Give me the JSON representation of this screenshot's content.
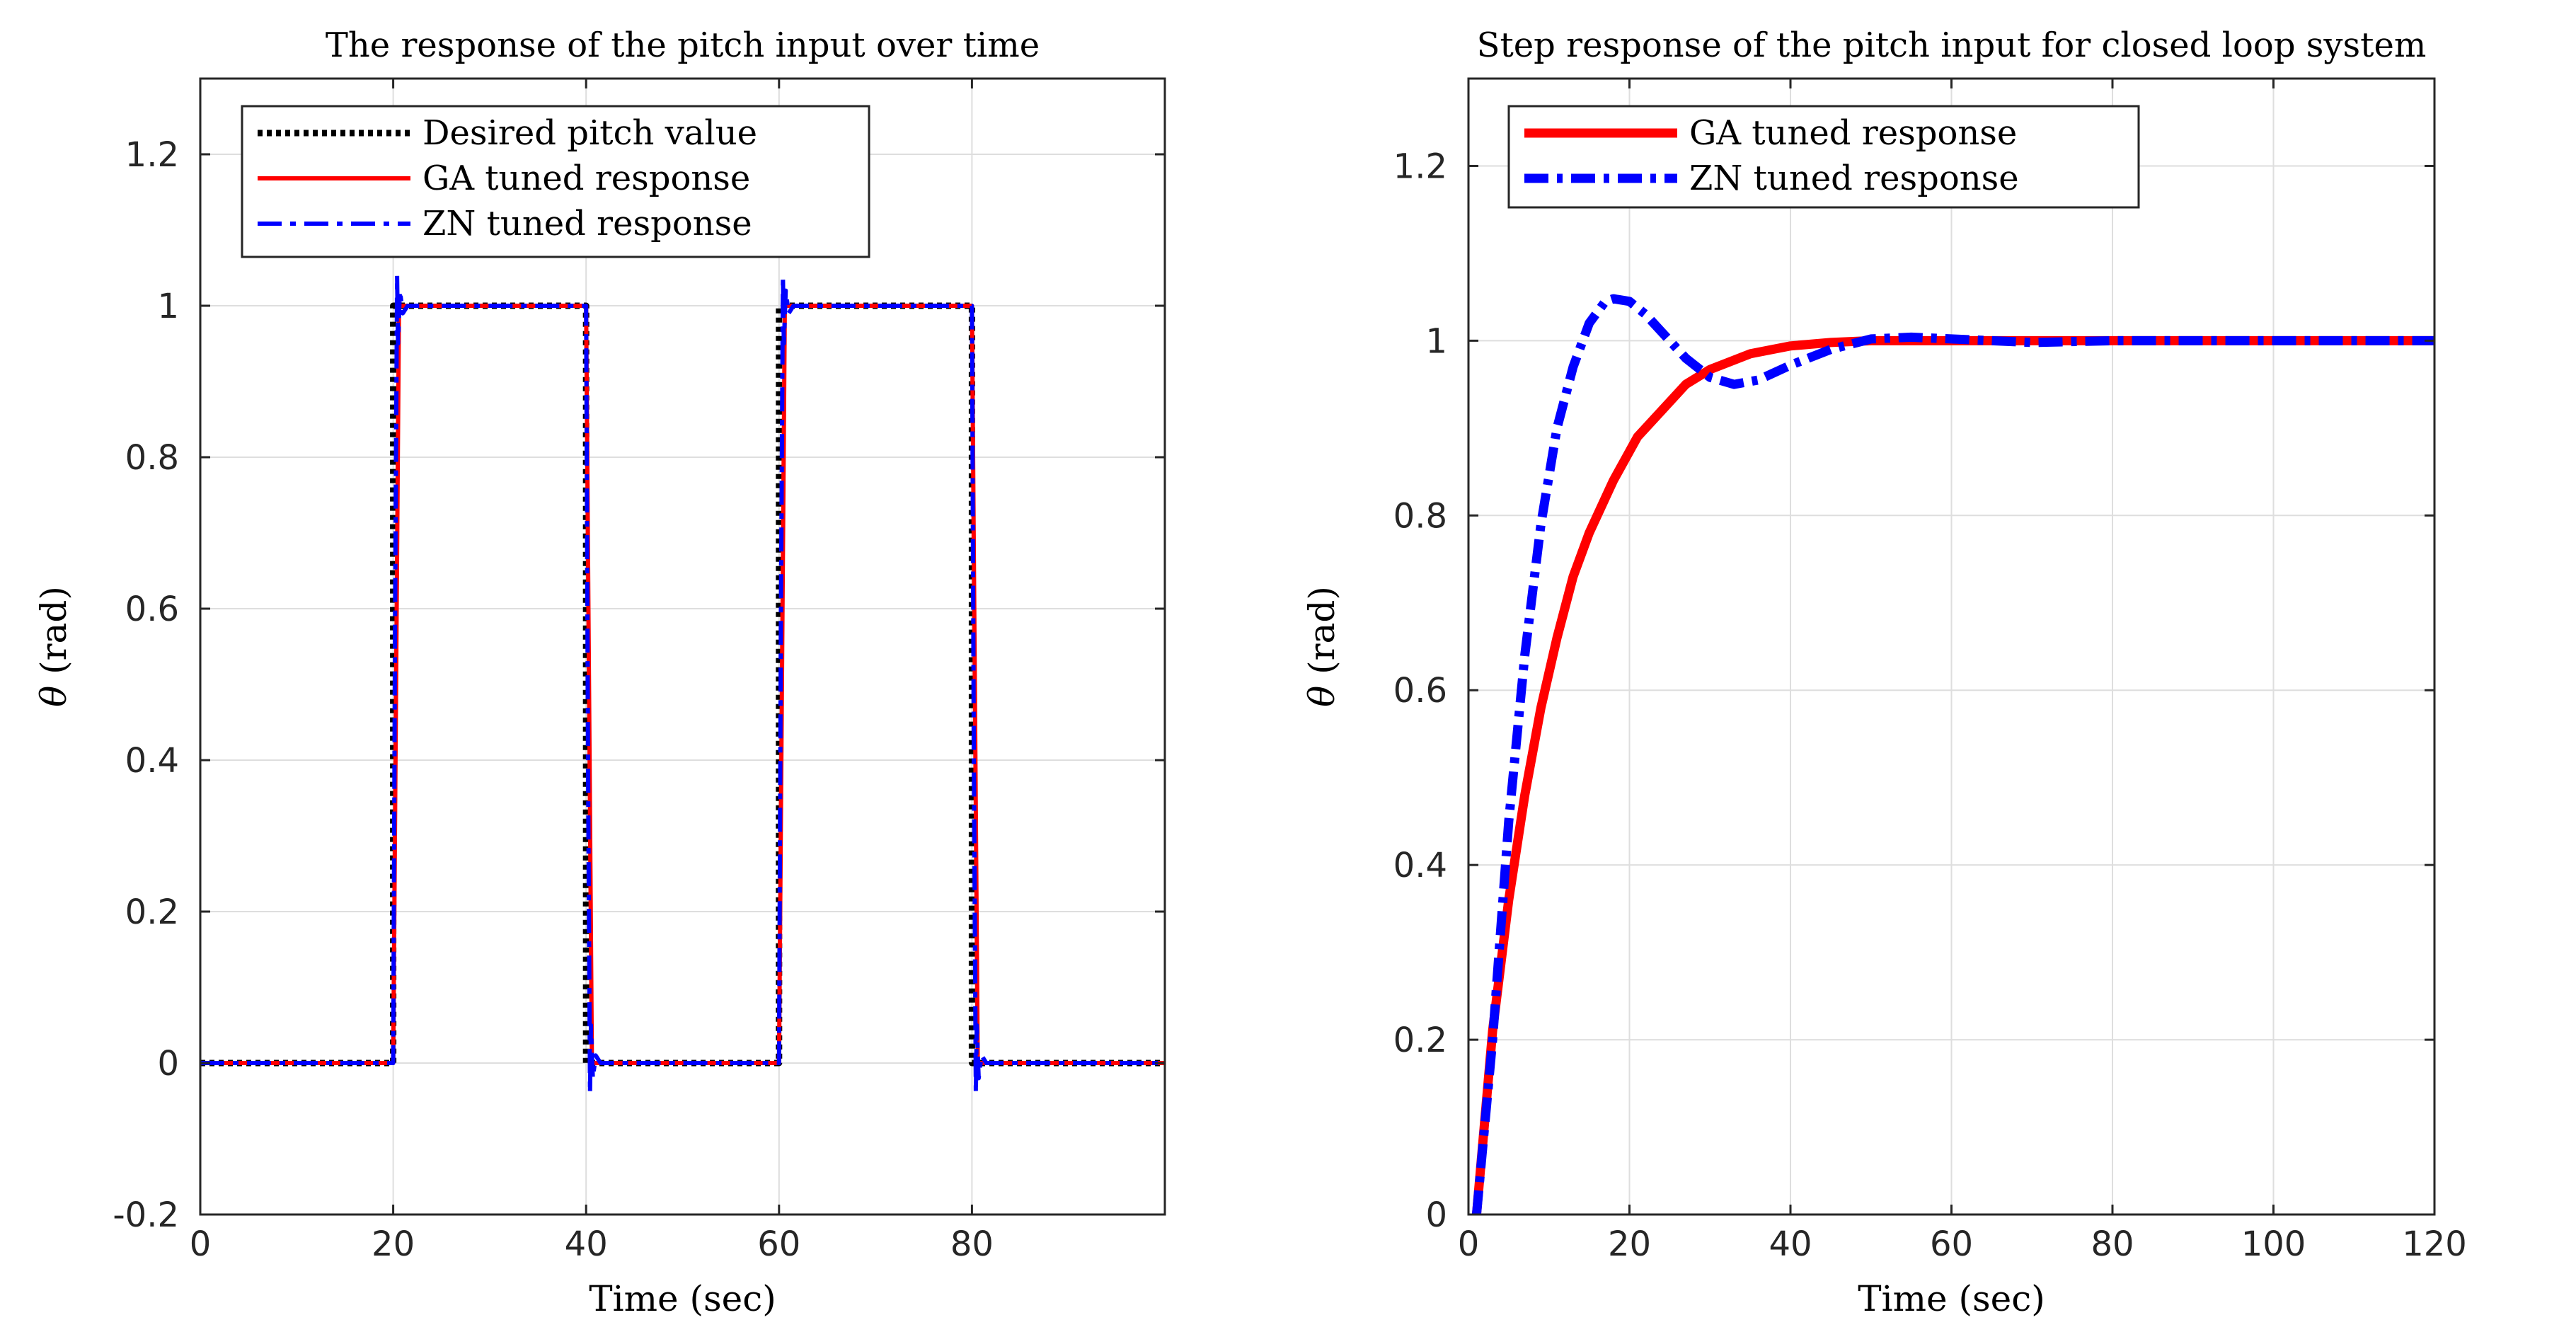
{
  "chart_data": [
    {
      "type": "line",
      "title": "The response of the pitch input over time",
      "xlabel": "Time (sec)",
      "ylabel_symbol": "θ",
      "ylabel": "(rad)",
      "xlim": [
        0,
        100
      ],
      "ylim": [
        -0.2,
        1.3
      ],
      "xticks": [
        0,
        20,
        40,
        60,
        80
      ],
      "xtick_labels": [
        "0",
        "20",
        "40",
        "60",
        "80"
      ],
      "yticks": [
        -0.2,
        0,
        0.2,
        0.4,
        0.6,
        0.8,
        1,
        1.2
      ],
      "ytick_labels": [
        "-0.2",
        "0",
        "0.2",
        "0.4",
        "0.6",
        "0.8",
        "1",
        "1.2"
      ],
      "grid": true,
      "legend_position": "top-left",
      "series": [
        {
          "name": "Desired pitch value",
          "color": "#000000",
          "style": "dotted",
          "x": [
            0,
            20,
            20,
            40,
            40,
            60,
            60,
            80,
            80,
            100
          ],
          "y": [
            0,
            0,
            1,
            1,
            0,
            0,
            1,
            1,
            0,
            0
          ]
        },
        {
          "name": "GA tuned response",
          "color": "#ff0000",
          "style": "solid",
          "x": [
            0,
            20,
            20.3,
            20.6,
            40,
            40.3,
            40.6,
            60,
            60.3,
            60.6,
            80,
            80.3,
            80.6,
            100
          ],
          "y": [
            0,
            0,
            0.5,
            1,
            1,
            0.5,
            0,
            0,
            0.5,
            1,
            1,
            0.5,
            0,
            0
          ]
        },
        {
          "name": "ZN tuned response",
          "color": "#0000ff",
          "style": "dashdot",
          "x": [
            0,
            20,
            20.2,
            20.4,
            20.5,
            20.7,
            21,
            21.5,
            40,
            40.2,
            40.4,
            40.5,
            40.7,
            41,
            41.5,
            60,
            60.2,
            60.4,
            60.5,
            60.7,
            61,
            61.5,
            80,
            80.2,
            80.4,
            80.5,
            80.7,
            81,
            81.5,
            100
          ],
          "y": [
            0,
            0,
            0.6,
            1.04,
            0.95,
            1.02,
            0.99,
            1,
            1,
            0.4,
            -0.04,
            0.05,
            -0.02,
            0.01,
            0,
            0,
            0.6,
            1.04,
            0.95,
            1.02,
            0.99,
            1,
            1,
            0.4,
            -0.04,
            0.05,
            -0.02,
            0.01,
            0,
            0
          ]
        }
      ]
    },
    {
      "type": "line",
      "title": "Step response of the pitch input for closed loop system",
      "xlabel": "Time (sec)",
      "ylabel_symbol": "θ",
      "ylabel": "(rad)",
      "xlim": [
        0,
        120
      ],
      "ylim": [
        0,
        1.3
      ],
      "xticks": [
        0,
        20,
        40,
        60,
        80,
        100,
        120
      ],
      "xtick_labels": [
        "0",
        "20",
        "40",
        "60",
        "80",
        "100",
        "120"
      ],
      "yticks": [
        0,
        0.2,
        0.4,
        0.6,
        0.8,
        1,
        1.2
      ],
      "ytick_labels": [
        "0",
        "0.2",
        "0.4",
        "0.6",
        "0.8",
        "1",
        "1.2"
      ],
      "grid": true,
      "legend_position": "top-left",
      "series": [
        {
          "name": "GA tuned response",
          "color": "#ff0000",
          "style": "solid",
          "x": [
            1,
            3,
            5,
            7,
            9,
            11,
            13,
            15,
            18,
            21,
            24,
            27,
            30,
            35,
            40,
            45,
            50,
            55,
            60,
            80,
            100,
            120
          ],
          "y": [
            0,
            0.21,
            0.36,
            0.48,
            0.58,
            0.66,
            0.73,
            0.78,
            0.84,
            0.89,
            0.92,
            0.95,
            0.967,
            0.985,
            0.994,
            0.998,
            1,
            1,
            1,
            1,
            1,
            1
          ]
        },
        {
          "name": "ZN tuned response",
          "color": "#0000ff",
          "style": "dashdot",
          "x": [
            1,
            3,
            5,
            7,
            9,
            11,
            13,
            15,
            17,
            18,
            20,
            22,
            24,
            27,
            30,
            33,
            36,
            40,
            45,
            50,
            55,
            60,
            65,
            70,
            80,
            100,
            120
          ],
          "y": [
            0,
            0.2,
            0.45,
            0.64,
            0.79,
            0.9,
            0.97,
            1.02,
            1.045,
            1.048,
            1.045,
            1.03,
            1.01,
            0.98,
            0.958,
            0.95,
            0.955,
            0.972,
            0.99,
            1.002,
            1.004,
            1.002,
            1,
            0.998,
            1,
            1,
            1
          ]
        }
      ]
    }
  ]
}
